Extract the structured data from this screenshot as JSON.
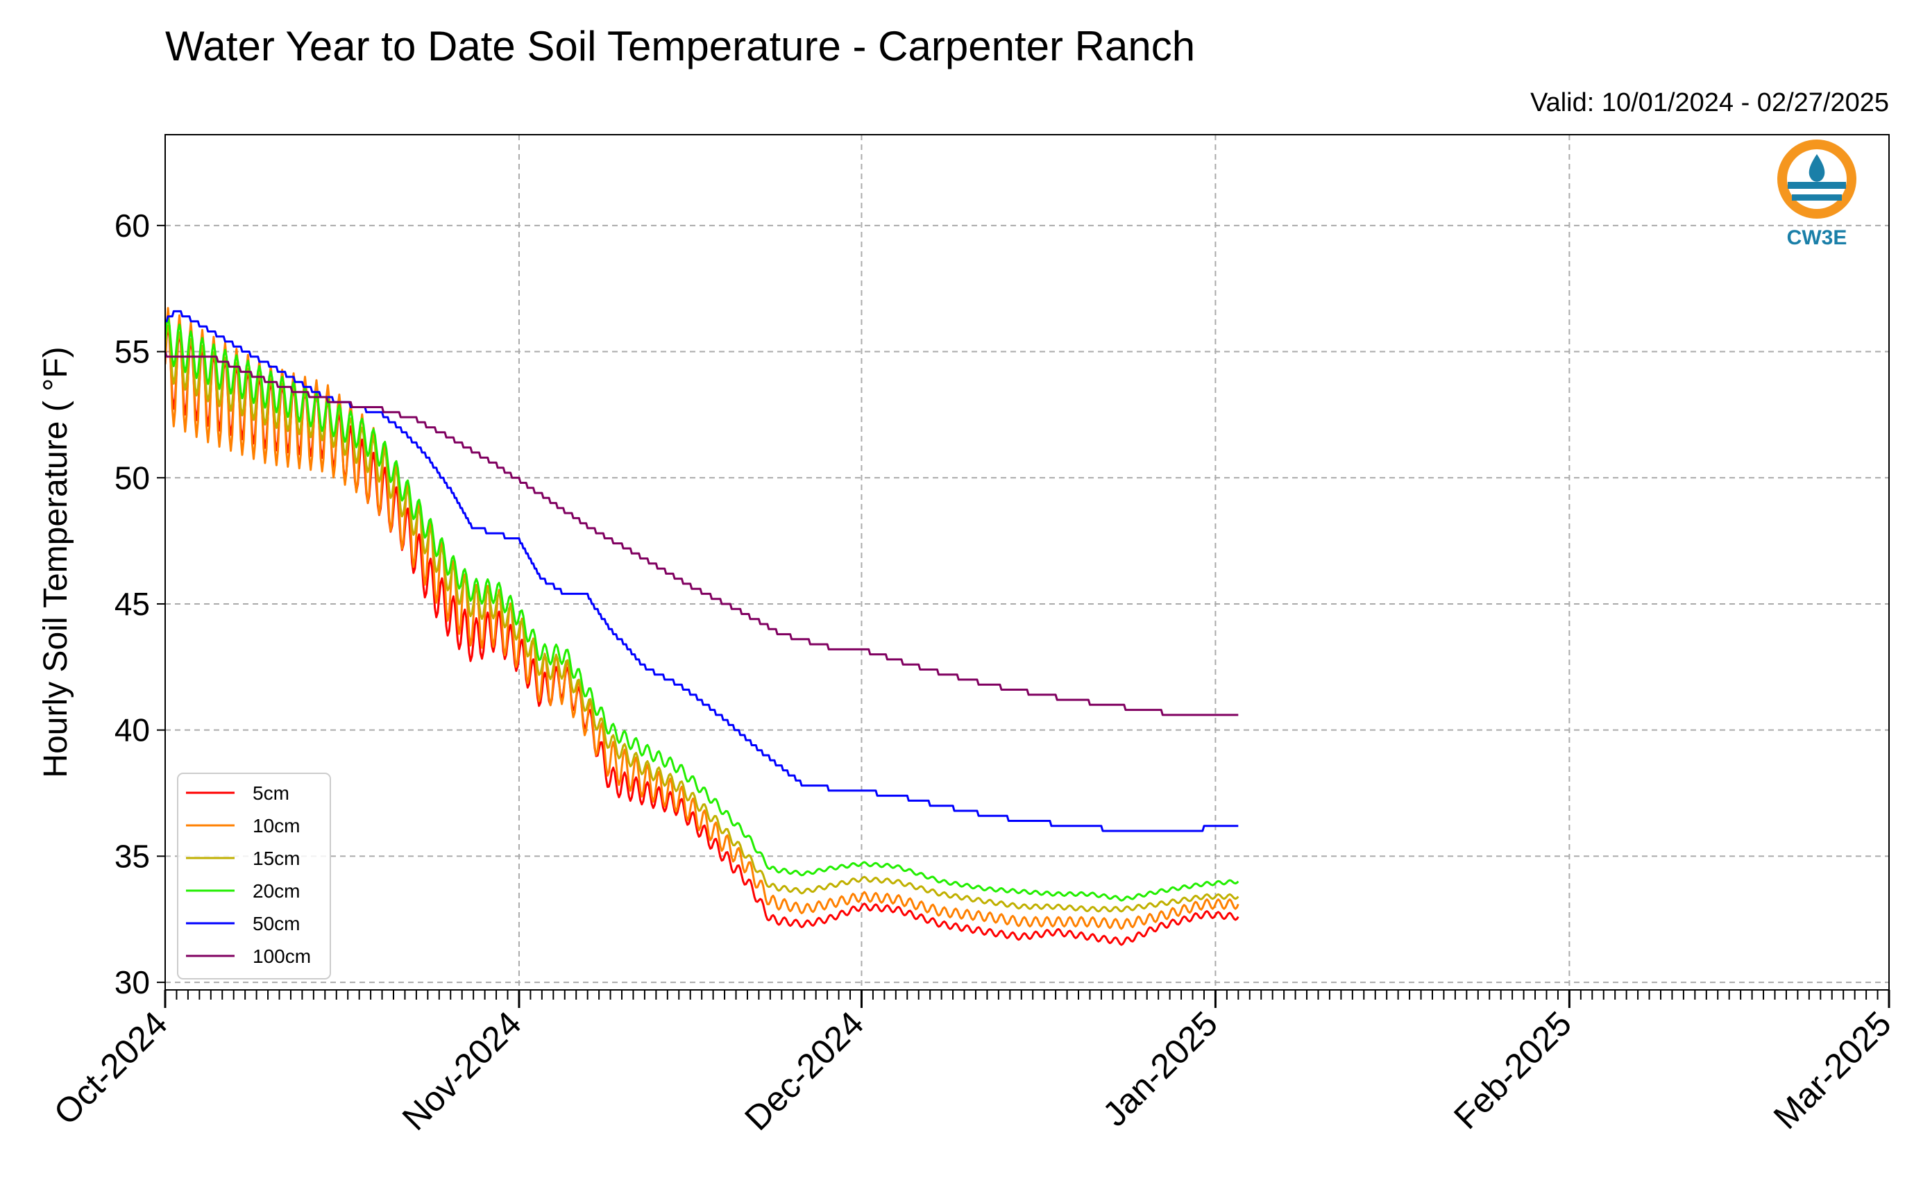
{
  "chart_data": {
    "type": "line",
    "title": "Water Year to Date Soil Temperature - Carpenter Ranch",
    "subtitle": "Valid: 10/01/2024 - 02/27/2025",
    "xlabel": "",
    "ylabel": "Hourly Soil Temperature ( °F)",
    "x_range": [
      "2024-10-01",
      "2025-03-01"
    ],
    "ylim": [
      29.7,
      63.6
    ],
    "y_ticks": [
      30,
      35,
      40,
      45,
      50,
      55,
      60
    ],
    "x_ticks": [
      {
        "date": "2024-10-01",
        "label": "Oct-2024"
      },
      {
        "date": "2024-11-01",
        "label": "Nov-2024"
      },
      {
        "date": "2024-12-01",
        "label": "Dec-2024"
      },
      {
        "date": "2025-01-01",
        "label": "Jan-2025"
      },
      {
        "date": "2025-02-01",
        "label": "Feb-2025"
      },
      {
        "date": "2025-03-01",
        "label": "Mar-2025"
      }
    ],
    "grid": true,
    "legend_position": "lower-left",
    "series": [
      {
        "name": "5cm",
        "color": "#ff0000",
        "diurnal_amplitude": 1.6,
        "points": [
          [
            "2024-10-01",
            54.5
          ],
          [
            "2024-10-05",
            53.5
          ],
          [
            "2024-10-10",
            52.5
          ],
          [
            "2024-10-15",
            52
          ],
          [
            "2024-10-18",
            50.5
          ],
          [
            "2024-10-20",
            49.5
          ],
          [
            "2024-10-22",
            48
          ],
          [
            "2024-10-24",
            46
          ],
          [
            "2024-10-26",
            44.5
          ],
          [
            "2024-10-28",
            43.5
          ],
          [
            "2024-10-30",
            44
          ],
          [
            "2024-11-01",
            43
          ],
          [
            "2024-11-03",
            41.5
          ],
          [
            "2024-11-05",
            42
          ],
          [
            "2024-11-07",
            40.5
          ],
          [
            "2024-11-09",
            38
          ],
          [
            "2024-11-12",
            37.5
          ],
          [
            "2024-11-15",
            37
          ],
          [
            "2024-11-18",
            35.5
          ],
          [
            "2024-11-21",
            34
          ],
          [
            "2024-11-23",
            32.5
          ],
          [
            "2024-11-26",
            32.3
          ],
          [
            "2024-11-28",
            32.5
          ],
          [
            "2024-12-01",
            33
          ],
          [
            "2024-12-04",
            32.9
          ],
          [
            "2024-12-08",
            32.3
          ],
          [
            "2024-12-12",
            32.0
          ],
          [
            "2024-12-15",
            31.8
          ],
          [
            "2024-12-18",
            32.0
          ],
          [
            "2024-12-21",
            31.8
          ],
          [
            "2024-12-24",
            31.6
          ],
          [
            "2024-12-27",
            32.2
          ],
          [
            "2024-12-31",
            32.7
          ],
          [
            "2025-01-03",
            32.6
          ]
        ]
      },
      {
        "name": "10cm",
        "color": "#ff8000",
        "diurnal_amplitude": 2.3,
        "points": [
          [
            "2024-10-01",
            54.5
          ],
          [
            "2024-10-05",
            53.5
          ],
          [
            "2024-10-10",
            52.5
          ],
          [
            "2024-10-15",
            52
          ],
          [
            "2024-10-18",
            51
          ],
          [
            "2024-10-20",
            50
          ],
          [
            "2024-10-22",
            48.5
          ],
          [
            "2024-10-24",
            47
          ],
          [
            "2024-10-26",
            45.5
          ],
          [
            "2024-10-28",
            44.5
          ],
          [
            "2024-10-30",
            44.5
          ],
          [
            "2024-11-01",
            43.5
          ],
          [
            "2024-11-03",
            42
          ],
          [
            "2024-11-05",
            42
          ],
          [
            "2024-11-07",
            40.5
          ],
          [
            "2024-11-09",
            38.8
          ],
          [
            "2024-11-12",
            38
          ],
          [
            "2024-11-15",
            37.3
          ],
          [
            "2024-11-18",
            36
          ],
          [
            "2024-11-21",
            34.6
          ],
          [
            "2024-11-23",
            33.2
          ],
          [
            "2024-11-26",
            32.9
          ],
          [
            "2024-11-28",
            33.1
          ],
          [
            "2024-12-01",
            33.4
          ],
          [
            "2024-12-04",
            33.3
          ],
          [
            "2024-12-08",
            32.8
          ],
          [
            "2024-12-12",
            32.6
          ],
          [
            "2024-12-15",
            32.4
          ],
          [
            "2024-12-18",
            32.4
          ],
          [
            "2024-12-21",
            32.4
          ],
          [
            "2024-12-24",
            32.3
          ],
          [
            "2024-12-27",
            32.6
          ],
          [
            "2024-12-31",
            33.1
          ],
          [
            "2025-01-03",
            33.1
          ]
        ]
      },
      {
        "name": "15cm",
        "color": "#c0b000",
        "diurnal_amplitude": 1.1,
        "points": [
          [
            "2024-10-01",
            55
          ],
          [
            "2024-10-05",
            54
          ],
          [
            "2024-10-10",
            53
          ],
          [
            "2024-10-15",
            52.3
          ],
          [
            "2024-10-18",
            51.3
          ],
          [
            "2024-10-20",
            50.5
          ],
          [
            "2024-10-22",
            49
          ],
          [
            "2024-10-24",
            47.5
          ],
          [
            "2024-10-26",
            46
          ],
          [
            "2024-10-28",
            45
          ],
          [
            "2024-10-30",
            45
          ],
          [
            "2024-11-01",
            44
          ],
          [
            "2024-11-03",
            42.5
          ],
          [
            "2024-11-05",
            42.5
          ],
          [
            "2024-11-07",
            41
          ],
          [
            "2024-11-09",
            39.5
          ],
          [
            "2024-11-12",
            38.5
          ],
          [
            "2024-11-15",
            37.8
          ],
          [
            "2024-11-18",
            36.5
          ],
          [
            "2024-11-21",
            35
          ],
          [
            "2024-11-23",
            33.8
          ],
          [
            "2024-11-26",
            33.6
          ],
          [
            "2024-11-28",
            33.8
          ],
          [
            "2024-12-01",
            34.1
          ],
          [
            "2024-12-04",
            34.0
          ],
          [
            "2024-12-08",
            33.5
          ],
          [
            "2024-12-12",
            33.2
          ],
          [
            "2024-12-15",
            33.0
          ],
          [
            "2024-12-18",
            33.0
          ],
          [
            "2024-12-21",
            32.9
          ],
          [
            "2024-12-24",
            32.9
          ],
          [
            "2024-12-27",
            33.1
          ],
          [
            "2024-12-31",
            33.4
          ],
          [
            "2025-01-03",
            33.4
          ]
        ]
      },
      {
        "name": "20cm",
        "color": "#22ee00",
        "diurnal_amplitude": 0.9,
        "points": [
          [
            "2024-10-01",
            55.5
          ],
          [
            "2024-10-05",
            54.5
          ],
          [
            "2024-10-10",
            53.5
          ],
          [
            "2024-10-15",
            52.5
          ],
          [
            "2024-10-18",
            51.8
          ],
          [
            "2024-10-20",
            51
          ],
          [
            "2024-10-22",
            49.5
          ],
          [
            "2024-10-24",
            48
          ],
          [
            "2024-10-26",
            46.5
          ],
          [
            "2024-10-28",
            45.5
          ],
          [
            "2024-10-30",
            45.5
          ],
          [
            "2024-11-01",
            44.5
          ],
          [
            "2024-11-03",
            43
          ],
          [
            "2024-11-05",
            43
          ],
          [
            "2024-11-07",
            41.5
          ],
          [
            "2024-11-09",
            40
          ],
          [
            "2024-11-12",
            39.2
          ],
          [
            "2024-11-15",
            38.5
          ],
          [
            "2024-11-18",
            37.2
          ],
          [
            "2024-11-21",
            35.8
          ],
          [
            "2024-11-23",
            34.5
          ],
          [
            "2024-11-26",
            34.3
          ],
          [
            "2024-11-28",
            34.5
          ],
          [
            "2024-12-01",
            34.7
          ],
          [
            "2024-12-04",
            34.6
          ],
          [
            "2024-12-08",
            34.0
          ],
          [
            "2024-12-12",
            33.7
          ],
          [
            "2024-12-15",
            33.6
          ],
          [
            "2024-12-18",
            33.5
          ],
          [
            "2024-12-21",
            33.5
          ],
          [
            "2024-12-24",
            33.3
          ],
          [
            "2024-12-27",
            33.6
          ],
          [
            "2024-12-31",
            33.9
          ],
          [
            "2025-01-03",
            34.0
          ]
        ]
      },
      {
        "name": "50cm",
        "color": "#0000ff",
        "diurnal_amplitude": 0,
        "points": [
          [
            "2024-10-01",
            56.2
          ],
          [
            "2024-10-02",
            56.6
          ],
          [
            "2024-10-05",
            55.8
          ],
          [
            "2024-10-10",
            54.5
          ],
          [
            "2024-10-15",
            53.2
          ],
          [
            "2024-10-20",
            52.5
          ],
          [
            "2024-10-22",
            51.8
          ],
          [
            "2024-10-24",
            50.8
          ],
          [
            "2024-10-26",
            49.5
          ],
          [
            "2024-10-28",
            48
          ],
          [
            "2024-10-30",
            47.8
          ],
          [
            "2024-11-01",
            47.5
          ],
          [
            "2024-11-03",
            46
          ],
          [
            "2024-11-05",
            45.4
          ],
          [
            "2024-11-07",
            45.3
          ],
          [
            "2024-11-09",
            44
          ],
          [
            "2024-11-12",
            42.5
          ],
          [
            "2024-11-15",
            41.8
          ],
          [
            "2024-11-18",
            40.8
          ],
          [
            "2024-11-21",
            39.6
          ],
          [
            "2024-11-24",
            38.5
          ],
          [
            "2024-11-26",
            37.8
          ],
          [
            "2024-11-28",
            37.7
          ],
          [
            "2024-12-01",
            37.6
          ],
          [
            "2024-12-05",
            37.3
          ],
          [
            "2024-12-10",
            36.8
          ],
          [
            "2024-12-15",
            36.4
          ],
          [
            "2024-12-20",
            36.2
          ],
          [
            "2024-12-24",
            36.0
          ],
          [
            "2024-12-29",
            36.0
          ],
          [
            "2024-12-31",
            36.1
          ],
          [
            "2025-01-03",
            36.1
          ]
        ]
      },
      {
        "name": "100cm",
        "color": "#800060",
        "diurnal_amplitude": 0,
        "points": [
          [
            "2024-10-01",
            54.9
          ],
          [
            "2024-10-05",
            54.8
          ],
          [
            "2024-10-08",
            54.2
          ],
          [
            "2024-10-12",
            53.5
          ],
          [
            "2024-10-16",
            53.0
          ],
          [
            "2024-10-20",
            52.7
          ],
          [
            "2024-10-23",
            52.3
          ],
          [
            "2024-10-26",
            51.6
          ],
          [
            "2024-10-30",
            50.5
          ],
          [
            "2024-11-03",
            49.3
          ],
          [
            "2024-11-08",
            47.8
          ],
          [
            "2024-11-12",
            46.8
          ],
          [
            "2024-11-16",
            45.7
          ],
          [
            "2024-11-20",
            44.8
          ],
          [
            "2024-11-24",
            43.8
          ],
          [
            "2024-11-28",
            43.3
          ],
          [
            "2024-12-01",
            43.2
          ],
          [
            "2024-12-06",
            42.5
          ],
          [
            "2024-12-12",
            41.8
          ],
          [
            "2024-12-18",
            41.3
          ],
          [
            "2024-12-24",
            40.9
          ],
          [
            "2024-12-29",
            40.6
          ],
          [
            "2025-01-03",
            40.5
          ]
        ]
      }
    ]
  },
  "logo": {
    "text": "CW3E",
    "ring_color": "#f5961e",
    "wave_color": "#1a7fa8",
    "text_color": "#1a7fa8"
  }
}
